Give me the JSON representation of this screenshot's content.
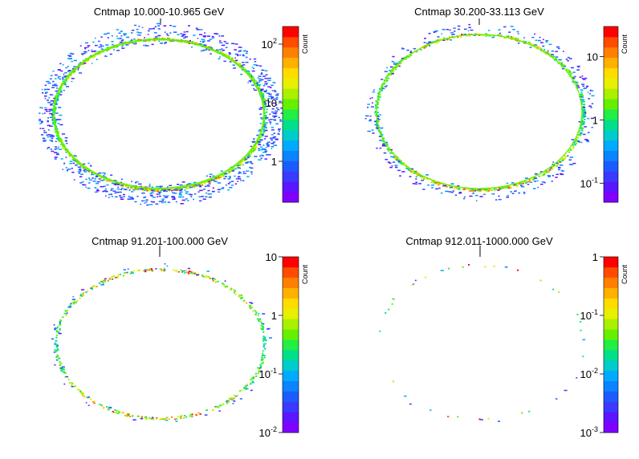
{
  "chart_data": [
    {
      "type": "heatmap",
      "title": "Cntmap 10.000-10.965 GeV",
      "colorbar_label": "Count",
      "colorbar_scale": "log",
      "zlim": [
        0.2,
        200
      ],
      "colorbar_ticks": [
        {
          "value": 1,
          "base": "1",
          "exp": ""
        },
        {
          "value": 10,
          "base": "10",
          "exp": ""
        },
        {
          "value": 100,
          "base": "10",
          "exp": "2"
        }
      ],
      "map": "all-sky ellipse; bright ring along the ellipse edge with scattered low-count pixels outside it"
    },
    {
      "type": "heatmap",
      "title": "Cntmap 30.200-33.113 GeV",
      "colorbar_label": "Count",
      "colorbar_scale": "log",
      "zlim": [
        0.05,
        30
      ],
      "colorbar_ticks": [
        {
          "value": 0.1,
          "base": "10",
          "exp": "-1"
        },
        {
          "value": 1,
          "base": "1",
          "exp": ""
        },
        {
          "value": 10,
          "base": "10",
          "exp": ""
        }
      ],
      "map": "all-sky ellipse; ring along the ellipse edge with sparse pixels outside it"
    },
    {
      "type": "heatmap",
      "title": "Cntmap 91.201-100.000 GeV",
      "colorbar_label": "Count",
      "colorbar_scale": "log",
      "zlim": [
        0.01,
        10
      ],
      "colorbar_ticks": [
        {
          "value": 0.01,
          "base": "10",
          "exp": "-2"
        },
        {
          "value": 0.1,
          "base": "10",
          "exp": "-1"
        },
        {
          "value": 1,
          "base": "1",
          "exp": ""
        },
        {
          "value": 10,
          "base": "10",
          "exp": ""
        }
      ],
      "map": "all-sky ellipse; thin ring along the ellipse edge"
    },
    {
      "type": "heatmap",
      "title": "Cntmap 912.011-1000.000 GeV",
      "colorbar_label": "Count",
      "colorbar_scale": "log",
      "zlim": [
        0.001,
        1
      ],
      "colorbar_ticks": [
        {
          "value": 0.001,
          "base": "10",
          "exp": "-3"
        },
        {
          "value": 0.01,
          "base": "10",
          "exp": "-2"
        },
        {
          "value": 0.1,
          "base": "10",
          "exp": "-1"
        },
        {
          "value": 1,
          "base": "1",
          "exp": ""
        }
      ],
      "map": "all-sky ellipse; only a few isolated pixels near the edge"
    }
  ],
  "palette": [
    "#7f00ff",
    "#5b16ff",
    "#3a3aff",
    "#1c5cff",
    "#0a84ff",
    "#00aaff",
    "#00cccc",
    "#00e08a",
    "#22ee44",
    "#66f000",
    "#aaf000",
    "#e6f000",
    "#ffdc00",
    "#ffb000",
    "#ff8000",
    "#ff4c00",
    "#ff0000"
  ]
}
